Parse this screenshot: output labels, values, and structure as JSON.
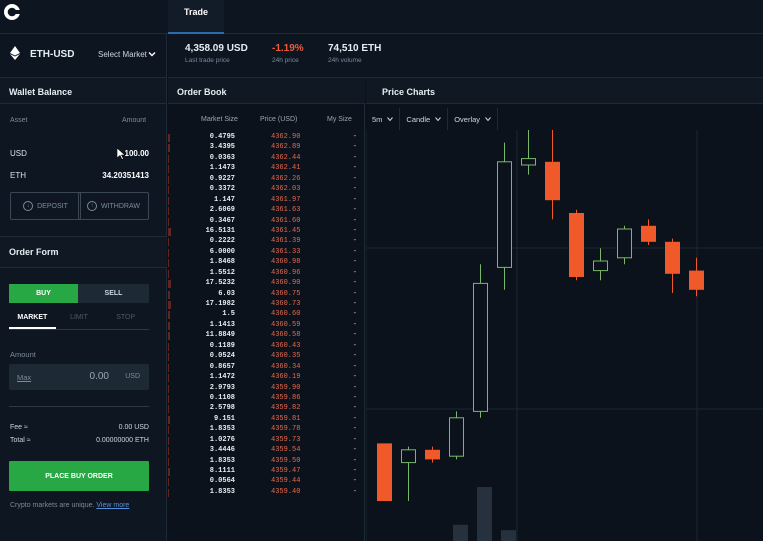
{
  "header": {
    "tab": "Trade"
  },
  "ticker": {
    "pair": "ETH-USD",
    "select_market": "Select Market",
    "last_price": "4,358.09 USD",
    "last_price_label": "Last trade price",
    "change": "-1.19%",
    "change_label": "24h price",
    "volume": "74,510 ETH",
    "volume_label": "24h volume"
  },
  "wallet": {
    "title": "Wallet Balance",
    "col_asset": "Asset",
    "col_amount": "Amount",
    "rows": [
      {
        "asset": "USD",
        "amount": "100.00"
      },
      {
        "asset": "ETH",
        "amount": "34.20351413"
      }
    ],
    "deposit": "DEPOSIT",
    "withdraw": "WITHDRAW"
  },
  "order_form": {
    "title": "Order Form",
    "buy": "BUY",
    "sell": "SELL",
    "tabs": [
      "MARKET",
      "LIMIT",
      "STOP"
    ],
    "amount_label": "Amount",
    "max": "Max",
    "amount_value": "0.00",
    "amount_currency": "USD",
    "fee_label": "Fee ≈",
    "fee_value": "0.00 USD",
    "total_label": "Total ≈",
    "total_value": "0.00000000 ETH",
    "place_order": "PLACE BUY ORDER",
    "note": "Crypto markets are unique.",
    "note_link": "View more"
  },
  "order_book": {
    "title": "Order Book",
    "col_size": "Market Size",
    "col_price": "Price (USD)",
    "col_mine": "My Size",
    "rows": [
      {
        "size": "0.4795",
        "price": "4362.90",
        "mine": "-",
        "depth": 0.02
      },
      {
        "size": "3.4395",
        "price": "4362.89",
        "mine": "-",
        "depth": 0.02
      },
      {
        "size": "0.0363",
        "price": "4362.44",
        "mine": "-",
        "depth": 0.01
      },
      {
        "size": "1.1473",
        "price": "4362.41",
        "mine": "-",
        "depth": 0.01
      },
      {
        "size": "0.9227",
        "price": "4362.26",
        "mine": "-",
        "depth": 0.01
      },
      {
        "size": "0.3372",
        "price": "4362.03",
        "mine": "-",
        "depth": 0.01
      },
      {
        "size": "1.147",
        "price": "4361.97",
        "mine": "-",
        "depth": 0.01
      },
      {
        "size": "2.6069",
        "price": "4361.63",
        "mine": "-",
        "depth": 0.01
      },
      {
        "size": "0.3467",
        "price": "4361.60",
        "mine": "-",
        "depth": 0.01
      },
      {
        "size": "16.5131",
        "price": "4361.45",
        "mine": "-",
        "depth": 0.03
      },
      {
        "size": "0.2222",
        "price": "4361.39",
        "mine": "-",
        "depth": 0.01
      },
      {
        "size": "6.0000",
        "price": "4361.33",
        "mine": "-",
        "depth": 0.01
      },
      {
        "size": "1.8468",
        "price": "4360.98",
        "mine": "-",
        "depth": 0.01
      },
      {
        "size": "1.5512",
        "price": "4360.96",
        "mine": "-",
        "depth": 0.01
      },
      {
        "size": "17.5232",
        "price": "4360.90",
        "mine": "-",
        "depth": 0.03
      },
      {
        "size": "6.03",
        "price": "4360.75",
        "mine": "-",
        "depth": 0.02
      },
      {
        "size": "17.1982",
        "price": "4360.73",
        "mine": "-",
        "depth": 0.03
      },
      {
        "size": "1.5",
        "price": "4360.60",
        "mine": "-",
        "depth": 0.02
      },
      {
        "size": "1.1413",
        "price": "4360.59",
        "mine": "-",
        "depth": 0.02
      },
      {
        "size": "11.8849",
        "price": "4360.58",
        "mine": "-",
        "depth": 0.02
      },
      {
        "size": "0.1189",
        "price": "4360.43",
        "mine": "-",
        "depth": 0.01
      },
      {
        "size": "0.0524",
        "price": "4360.35",
        "mine": "-",
        "depth": 0.01
      },
      {
        "size": "0.8657",
        "price": "4360.34",
        "mine": "-",
        "depth": 0.01
      },
      {
        "size": "1.1472",
        "price": "4360.19",
        "mine": "-",
        "depth": 0.01
      },
      {
        "size": "2.9793",
        "price": "4359.90",
        "mine": "-",
        "depth": 0.01
      },
      {
        "size": "0.1108",
        "price": "4359.86",
        "mine": "-",
        "depth": 0.01
      },
      {
        "size": "2.5798",
        "price": "4359.82",
        "mine": "-",
        "depth": 0.01
      },
      {
        "size": "9.151",
        "price": "4359.81",
        "mine": "-",
        "depth": 0.02
      },
      {
        "size": "1.8353",
        "price": "4359.78",
        "mine": "-",
        "depth": 0.01
      },
      {
        "size": "1.0276",
        "price": "4359.73",
        "mine": "-",
        "depth": 0.01
      },
      {
        "size": "3.4446",
        "price": "4359.54",
        "mine": "-",
        "depth": 0.01
      },
      {
        "size": "1.8353",
        "price": "4359.50",
        "mine": "-",
        "depth": 0.01
      },
      {
        "size": "8.1111",
        "price": "4359.47",
        "mine": "-",
        "depth": 0.02
      },
      {
        "size": "0.0564",
        "price": "4359.44",
        "mine": "-",
        "depth": 0.01
      },
      {
        "size": "1.8353",
        "price": "4359.40",
        "mine": "-",
        "depth": 0.01
      }
    ]
  },
  "charts": {
    "title": "Price Charts",
    "interval": "5m",
    "chart_type": "Candle",
    "overlay": "Overlay",
    "up_color": "#78b86a",
    "down_color": "#f05a2a"
  },
  "chart_data": {
    "type": "candlestick",
    "candles": [
      {
        "o": 0.18,
        "c": 0.0,
        "h": 0.18,
        "l": 0.0,
        "v": 0
      },
      {
        "o": 0.12,
        "c": 0.16,
        "h": 0.17,
        "l": 0.0,
        "v": 0
      },
      {
        "o": 0.16,
        "c": 0.13,
        "h": 0.17,
        "l": 0.12,
        "v": 0
      },
      {
        "o": 0.14,
        "c": 0.26,
        "h": 0.28,
        "l": 0.13,
        "v": 0.06
      },
      {
        "o": 0.28,
        "c": 0.68,
        "h": 0.74,
        "l": 0.26,
        "v": 0.2
      },
      {
        "o": 0.73,
        "c": 1.06,
        "h": 1.12,
        "l": 0.66,
        "v": 0.04
      },
      {
        "o": 1.05,
        "c": 1.07,
        "h": 1.17,
        "l": 1.02,
        "v": 0
      },
      {
        "o": 1.06,
        "c": 0.94,
        "h": 1.23,
        "l": 0.88,
        "v": 0
      },
      {
        "o": 0.9,
        "c": 0.7,
        "h": 0.91,
        "l": 0.69,
        "v": 0
      },
      {
        "o": 0.72,
        "c": 0.75,
        "h": 0.79,
        "l": 0.69,
        "v": 0
      },
      {
        "o": 0.76,
        "c": 0.85,
        "h": 0.86,
        "l": 0.74,
        "v": 0
      },
      {
        "o": 0.86,
        "c": 0.81,
        "h": 0.88,
        "l": 0.8,
        "v": 0
      },
      {
        "o": 0.81,
        "c": 0.71,
        "h": 0.82,
        "l": 0.65,
        "v": 0
      },
      {
        "o": 0.72,
        "c": 0.66,
        "h": 0.76,
        "l": 0.64,
        "v": 0
      }
    ]
  }
}
